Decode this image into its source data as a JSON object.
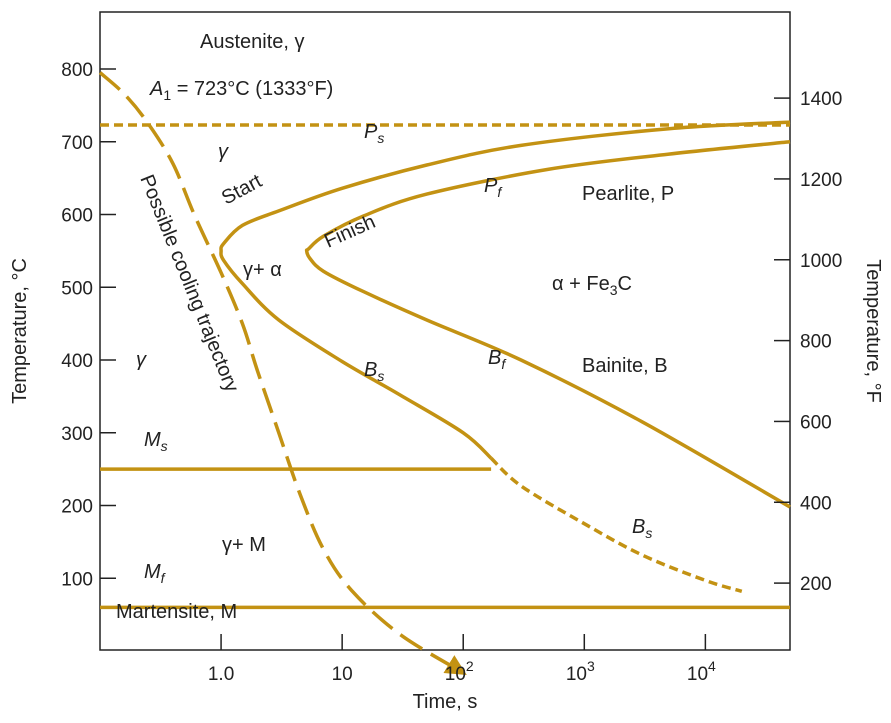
{
  "colors": {
    "curve": "#C39213",
    "axis": "#222222",
    "background": "#ffffff"
  },
  "chart_data": {
    "type": "line",
    "title": "",
    "xlabel": "Time, s",
    "ylabel_left": "Temperature, °C",
    "ylabel_right": "Temperature, °F",
    "x_scale": "log",
    "xlim": [
      0.1,
      50000
    ],
    "ylim_left": [
      0,
      800
    ],
    "x_ticks": [
      {
        "value": 1,
        "label": "1.0"
      },
      {
        "value": 10,
        "label": "10"
      },
      {
        "value": 100,
        "label": "10",
        "exp": "2"
      },
      {
        "value": 1000,
        "label": "10",
        "exp": "3"
      },
      {
        "value": 10000,
        "label": "10",
        "exp": "4"
      }
    ],
    "y_ticks_left": [
      100,
      200,
      300,
      400,
      500,
      600,
      700,
      800
    ],
    "y_ticks_right": [
      200,
      400,
      600,
      800,
      1000,
      1200,
      1400
    ],
    "grid": false,
    "series": [
      {
        "name": "Start",
        "style": "solid",
        "points": [
          [
            50000,
            727
          ],
          [
            5000,
            718
          ],
          [
            300,
            695
          ],
          [
            50,
            668
          ],
          [
            10,
            636
          ],
          [
            3,
            605
          ],
          [
            1.5,
            585
          ],
          [
            1.05,
            560
          ],
          [
            1.0,
            550
          ],
          [
            1.05,
            537
          ],
          [
            1.5,
            505
          ],
          [
            3,
            455
          ],
          [
            10,
            398
          ],
          [
            30,
            352
          ],
          [
            100,
            300
          ],
          [
            170,
            265
          ]
        ]
      },
      {
        "name": "Bs extension",
        "style": "dashed",
        "points": [
          [
            170,
            265
          ],
          [
            300,
            227
          ],
          [
            1000,
            175
          ],
          [
            3000,
            132
          ],
          [
            10000,
            97
          ],
          [
            20000,
            82
          ]
        ]
      },
      {
        "name": "Finish",
        "style": "solid",
        "points": [
          [
            50000,
            700
          ],
          [
            5000,
            683
          ],
          [
            500,
            662
          ],
          [
            50,
            628
          ],
          [
            15,
            598
          ],
          [
            7,
            570
          ],
          [
            5.3,
            553
          ],
          [
            5.1,
            550
          ],
          [
            5.4,
            540
          ],
          [
            7,
            522
          ],
          [
            15,
            494
          ],
          [
            50,
            455
          ],
          [
            300,
            400
          ],
          [
            3000,
            315
          ],
          [
            50000,
            198
          ]
        ]
      },
      {
        "name": "A1",
        "style": "dashed",
        "points": [
          [
            0.1,
            723
          ],
          [
            50000,
            723
          ]
        ]
      },
      {
        "name": "Ms",
        "style": "solid",
        "points": [
          [
            0.1,
            250
          ],
          [
            170,
            250
          ]
        ]
      },
      {
        "name": "Mf",
        "style": "solid",
        "points": [
          [
            0.1,
            60
          ],
          [
            50000,
            60
          ]
        ]
      },
      {
        "name": "Possible cooling trajectory",
        "style": "long-dash",
        "arrow": true,
        "points": [
          [
            0.1,
            795
          ],
          [
            0.16,
            765
          ],
          [
            0.25,
            725
          ],
          [
            0.4,
            670
          ],
          [
            0.6,
            600
          ],
          [
            1,
            520
          ],
          [
            1.5,
            450
          ],
          [
            2,
            385
          ],
          [
            3,
            300
          ],
          [
            4.5,
            215
          ],
          [
            7,
            140
          ],
          [
            12,
            83
          ],
          [
            30,
            23
          ],
          [
            100,
            -30
          ]
        ]
      }
    ],
    "annotations": {
      "austenite": "Austenite, γ",
      "a1": {
        "sym": "A",
        "sub": "1",
        "rest": " = 723°C (1333°F)"
      },
      "ps": {
        "sym": "P",
        "sub": "s"
      },
      "pf": {
        "sym": "P",
        "sub": "f"
      },
      "bs_upper": {
        "sym": "B",
        "sub": "s"
      },
      "bf": {
        "sym": "B",
        "sub": "f"
      },
      "bs_lower": {
        "sym": "B",
        "sub": "s"
      },
      "ms": {
        "sym": "M",
        "sub": "s"
      },
      "mf": {
        "sym": "M",
        "sub": "f"
      },
      "gamma_upper": "γ",
      "gamma_left": "γ",
      "start": "Start",
      "finish": "Finish",
      "gamma_alpha": "γ+ α",
      "gamma_m": "γ+ M",
      "pearlite": "Pearlite, P",
      "alpha_fe3c": {
        "pre": "α + Fe",
        "sub": "3",
        "post": "C"
      },
      "bainite": "Bainite, B",
      "martensite": "Martensite, M",
      "trajectory": "Possible cooling trajectory"
    }
  }
}
